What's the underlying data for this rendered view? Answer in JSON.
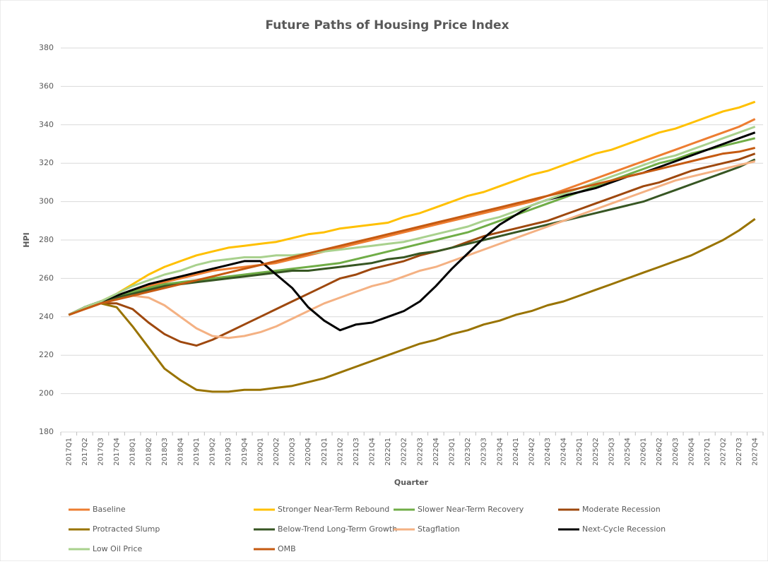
{
  "chart_data": {
    "type": "line",
    "title": "Future Paths of Housing Price Index",
    "x_label": "Quarter",
    "y_label": "HPI",
    "categories": [
      "2017Q1",
      "2017Q2",
      "2017Q3",
      "2017Q4",
      "2018Q1",
      "2018Q2",
      "2018Q3",
      "2018Q4",
      "2019Q1",
      "2019Q2",
      "2019Q3",
      "2019Q4",
      "2020Q1",
      "2020Q2",
      "2020Q3",
      "2020Q4",
      "2021Q1",
      "2021Q2",
      "2021Q3",
      "2021Q4",
      "2022Q1",
      "2022Q2",
      "2022Q3",
      "2022Q4",
      "2023Q1",
      "2023Q2",
      "2023Q3",
      "2023Q4",
      "2024Q1",
      "2024Q2",
      "2024Q3",
      "2024Q4",
      "2025Q1",
      "2025Q2",
      "2025Q3",
      "2025Q4",
      "2026Q1",
      "2026Q2",
      "2026Q3",
      "2026Q4",
      "2027Q1",
      "2027Q2",
      "2027Q3",
      "2027Q4"
    ],
    "ylim": [
      180,
      380
    ],
    "yticks": [
      180,
      200,
      220,
      240,
      260,
      280,
      300,
      320,
      340,
      360,
      380
    ],
    "grid": true,
    "series": [
      {
        "name": "Baseline",
        "color": "#ED7D31",
        "values": [
          241,
          244,
          247,
          250,
          253,
          256,
          258,
          260,
          262,
          264,
          265,
          266,
          267,
          268,
          270,
          272,
          274,
          276,
          278,
          280,
          282,
          284,
          286,
          288,
          290,
          292,
          294,
          296,
          298,
          300,
          303,
          306,
          309,
          312,
          315,
          318,
          321,
          324,
          327,
          330,
          333,
          336,
          339,
          343
        ]
      },
      {
        "name": "Stronger Near-Term Rebound",
        "color": "#FFC000",
        "values": [
          241,
          245,
          248,
          252,
          257,
          262,
          266,
          269,
          272,
          274,
          276,
          277,
          278,
          279,
          281,
          283,
          284,
          286,
          287,
          288,
          289,
          292,
          294,
          297,
          300,
          303,
          305,
          308,
          311,
          314,
          316,
          319,
          322,
          325,
          327,
          330,
          333,
          336,
          338,
          341,
          344,
          347,
          349,
          352
        ]
      },
      {
        "name": "Slower Near-Term Recovery",
        "color": "#70AD47",
        "values": [
          241,
          245,
          248,
          251,
          253,
          255,
          257,
          258,
          259,
          260,
          261,
          262,
          263,
          264,
          265,
          266,
          267,
          268,
          270,
          272,
          274,
          276,
          278,
          280,
          282,
          284,
          287,
          290,
          293,
          296,
          299,
          302,
          305,
          308,
          311,
          314,
          317,
          320,
          322,
          325,
          327,
          329,
          331,
          333
        ]
      },
      {
        "name": "Moderate Recession",
        "color": "#9E480E",
        "values": [
          241,
          244,
          247,
          247,
          244,
          237,
          231,
          227,
          225,
          228,
          232,
          236,
          240,
          244,
          248,
          252,
          256,
          260,
          262,
          265,
          267,
          269,
          272,
          274,
          276,
          279,
          282,
          284,
          286,
          288,
          290,
          293,
          296,
          299,
          302,
          305,
          308,
          310,
          313,
          316,
          318,
          320,
          322,
          325
        ]
      },
      {
        "name": "Protracted Slump",
        "color": "#997300",
        "values": [
          241,
          245,
          247,
          245,
          235,
          224,
          213,
          207,
          202,
          201,
          201,
          202,
          202,
          203,
          204,
          206,
          208,
          211,
          214,
          217,
          220,
          223,
          226,
          228,
          231,
          233,
          236,
          238,
          241,
          243,
          246,
          248,
          251,
          254,
          257,
          260,
          263,
          266,
          269,
          272,
          276,
          280,
          285,
          291
        ]
      },
      {
        "name": "Below-Trend Long-Term Growth",
        "color": "#375623",
        "values": [
          241,
          245,
          248,
          250,
          252,
          254,
          256,
          257,
          258,
          259,
          260,
          261,
          262,
          263,
          264,
          264,
          265,
          266,
          267,
          268,
          270,
          271,
          273,
          274,
          276,
          278,
          280,
          282,
          284,
          286,
          288,
          290,
          292,
          294,
          296,
          298,
          300,
          303,
          306,
          309,
          312,
          315,
          318,
          322
        ]
      },
      {
        "name": "Stagflation",
        "color": "#F4B183",
        "values": [
          241,
          244,
          247,
          249,
          251,
          250,
          246,
          240,
          234,
          230,
          229,
          230,
          232,
          235,
          239,
          243,
          247,
          250,
          253,
          256,
          258,
          261,
          264,
          266,
          269,
          272,
          275,
          278,
          281,
          284,
          287,
          290,
          293,
          296,
          299,
          302,
          305,
          308,
          311,
          313,
          315,
          317,
          319,
          321
        ]
      },
      {
        "name": "Next-Cycle Recession",
        "color": "#000000",
        "values": [
          241,
          245,
          248,
          251,
          254,
          257,
          259,
          261,
          263,
          265,
          267,
          269,
          269,
          262,
          255,
          245,
          238,
          233,
          236,
          237,
          240,
          243,
          248,
          256,
          265,
          273,
          281,
          288,
          293,
          298,
          301,
          303,
          305,
          307,
          310,
          313,
          315,
          318,
          321,
          324,
          327,
          330,
          333,
          336
        ]
      },
      {
        "name": "Low Oil Price",
        "color": "#A9D18E",
        "values": [
          241,
          245,
          248,
          252,
          256,
          259,
          262,
          264,
          267,
          269,
          270,
          271,
          271,
          272,
          272,
          273,
          274,
          275,
          276,
          277,
          278,
          279,
          281,
          283,
          285,
          287,
          290,
          292,
          295,
          298,
          301,
          304,
          307,
          310,
          313,
          316,
          319,
          322,
          324,
          327,
          330,
          333,
          336,
          339
        ]
      },
      {
        "name": "OMB",
        "color": "#C55A11",
        "values": [
          241,
          244,
          247,
          249,
          251,
          253,
          255,
          257,
          259,
          261,
          263,
          265,
          267,
          269,
          271,
          273,
          275,
          277,
          279,
          281,
          283,
          285,
          287,
          289,
          291,
          293,
          295,
          297,
          299,
          301,
          303,
          305,
          307,
          309,
          311,
          313,
          315,
          317,
          319,
          321,
          323,
          325,
          326,
          328
        ]
      }
    ]
  }
}
